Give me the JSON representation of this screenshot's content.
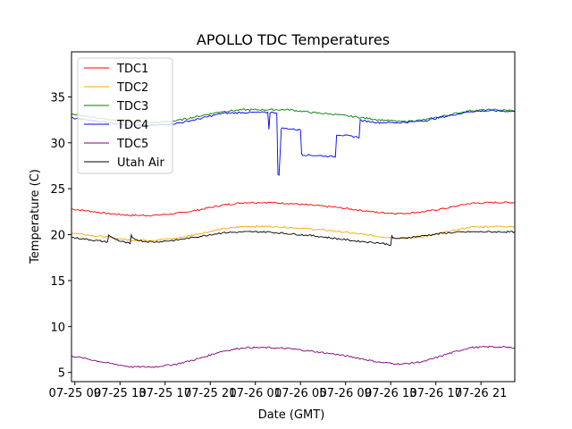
{
  "chart_data": {
    "type": "line",
    "title": "APOLLO TDC Temperatures",
    "xlabel": "Date (GMT)",
    "ylabel": "Temperature (C)",
    "x_unit": "hours since 07-25 00:00 GMT",
    "xlim": [
      8.7,
      48.0
    ],
    "ylim": [
      4.0,
      39.9
    ],
    "grid": false,
    "legend_position": "top-left",
    "x_ticks": [
      {
        "x": 9,
        "label": "07-25 09"
      },
      {
        "x": 13,
        "label": "07-25 13"
      },
      {
        "x": 17,
        "label": "07-25 17"
      },
      {
        "x": 21,
        "label": "07-25 21"
      },
      {
        "x": 25,
        "label": "07-26 01"
      },
      {
        "x": 29,
        "label": "07-26 05"
      },
      {
        "x": 33,
        "label": "07-26 09"
      },
      {
        "x": 37,
        "label": "07-26 13"
      },
      {
        "x": 41,
        "label": "07-26 17"
      },
      {
        "x": 45,
        "label": "07-26 21"
      }
    ],
    "y_ticks": [
      {
        "y": 5,
        "label": "5"
      },
      {
        "y": 10,
        "label": "10"
      },
      {
        "y": 15,
        "label": "15"
      },
      {
        "y": 20,
        "label": "20"
      },
      {
        "y": 25,
        "label": "25"
      },
      {
        "y": 30,
        "label": "30"
      },
      {
        "y": 35,
        "label": "35"
      }
    ],
    "series": [
      {
        "name": "TDC1",
        "color": "#ff0000",
        "x": [
          8.7,
          10,
          12,
          14,
          16,
          18,
          20,
          22,
          24,
          26,
          28,
          30,
          32,
          34,
          36,
          38,
          40,
          42,
          44,
          46,
          48
        ],
        "y": [
          22.8,
          22.6,
          22.3,
          22.1,
          22.1,
          22.3,
          22.7,
          23.2,
          23.5,
          23.5,
          23.4,
          23.2,
          23.0,
          22.7,
          22.4,
          22.3,
          22.5,
          22.9,
          23.4,
          23.5,
          23.5
        ]
      },
      {
        "name": "TDC2",
        "color": "#ffa500",
        "x": [
          8.7,
          10,
          12,
          14,
          16,
          18,
          20,
          22,
          24,
          26,
          28,
          30,
          32,
          34,
          36,
          38,
          40,
          42,
          44,
          46,
          48
        ],
        "y": [
          20.2,
          20.0,
          19.7,
          19.4,
          19.4,
          19.6,
          20.1,
          20.6,
          20.9,
          20.9,
          20.8,
          20.6,
          20.4,
          20.1,
          19.8,
          19.6,
          19.8,
          20.3,
          20.8,
          20.9,
          20.9
        ]
      },
      {
        "name": "TDC3",
        "color": "#008000",
        "x": [
          8.7,
          10,
          12,
          14,
          16,
          18,
          20,
          22,
          24,
          26,
          28,
          30,
          32,
          34,
          36,
          38,
          40,
          42,
          44,
          46,
          48
        ],
        "y": [
          33.1,
          32.9,
          32.5,
          32.2,
          32.2,
          32.4,
          32.9,
          33.4,
          33.6,
          33.6,
          33.6,
          33.3,
          33.1,
          32.8,
          32.5,
          32.3,
          32.5,
          33.0,
          33.5,
          33.6,
          33.5
        ]
      },
      {
        "name": "TDC4",
        "color": "#0000ff",
        "x": [
          8.7,
          10,
          12,
          14,
          16,
          18,
          20,
          22,
          24,
          26.1,
          26.2,
          26.3,
          26.4,
          26.9,
          27.0,
          27.1,
          27.3,
          29.0,
          29.1,
          29.2,
          32.0,
          32.1,
          32.2,
          34.2,
          34.3,
          34.4,
          36,
          38,
          40,
          42,
          44,
          46,
          48
        ],
        "y": [
          32.7,
          32.5,
          32.2,
          31.9,
          31.9,
          32.1,
          32.6,
          33.2,
          33.3,
          33.3,
          31.5,
          33.3,
          33.3,
          33.3,
          26.5,
          26.4,
          31.6,
          31.4,
          28.8,
          28.7,
          28.5,
          28.5,
          30.9,
          30.6,
          32.5,
          32.4,
          32.2,
          32.2,
          32.4,
          32.9,
          33.4,
          33.5,
          33.4
        ]
      },
      {
        "name": "TDC5",
        "color": "#800080",
        "x": [
          8.7,
          10,
          12,
          14,
          16,
          18,
          20,
          22,
          24,
          26,
          28,
          30,
          32,
          34,
          36,
          38,
          40,
          42,
          44,
          46,
          48
        ],
        "y": [
          6.8,
          6.5,
          6.0,
          5.6,
          5.6,
          5.9,
          6.5,
          7.3,
          7.7,
          7.7,
          7.6,
          7.3,
          7.0,
          6.6,
          6.1,
          5.9,
          6.2,
          7.0,
          7.7,
          7.8,
          7.7
        ]
      },
      {
        "name": "Utah Air",
        "color": "#000000",
        "x": [
          8.7,
          10,
          11.9,
          12.0,
          12.1,
          13,
          13.9,
          14.0,
          14.1,
          15,
          16,
          18,
          20,
          22,
          24,
          26,
          28,
          30,
          32,
          34,
          36,
          37.0,
          37.1,
          37.2,
          38,
          40,
          42,
          44,
          46,
          48
        ],
        "y": [
          19.7,
          19.5,
          19.2,
          20.0,
          19.8,
          19.3,
          19.0,
          19.9,
          19.6,
          19.3,
          19.2,
          19.4,
          19.8,
          20.2,
          20.3,
          20.3,
          20.1,
          19.9,
          19.6,
          19.3,
          19.1,
          18.9,
          19.8,
          19.6,
          19.6,
          19.9,
          20.2,
          20.3,
          20.3,
          20.3
        ]
      }
    ]
  }
}
